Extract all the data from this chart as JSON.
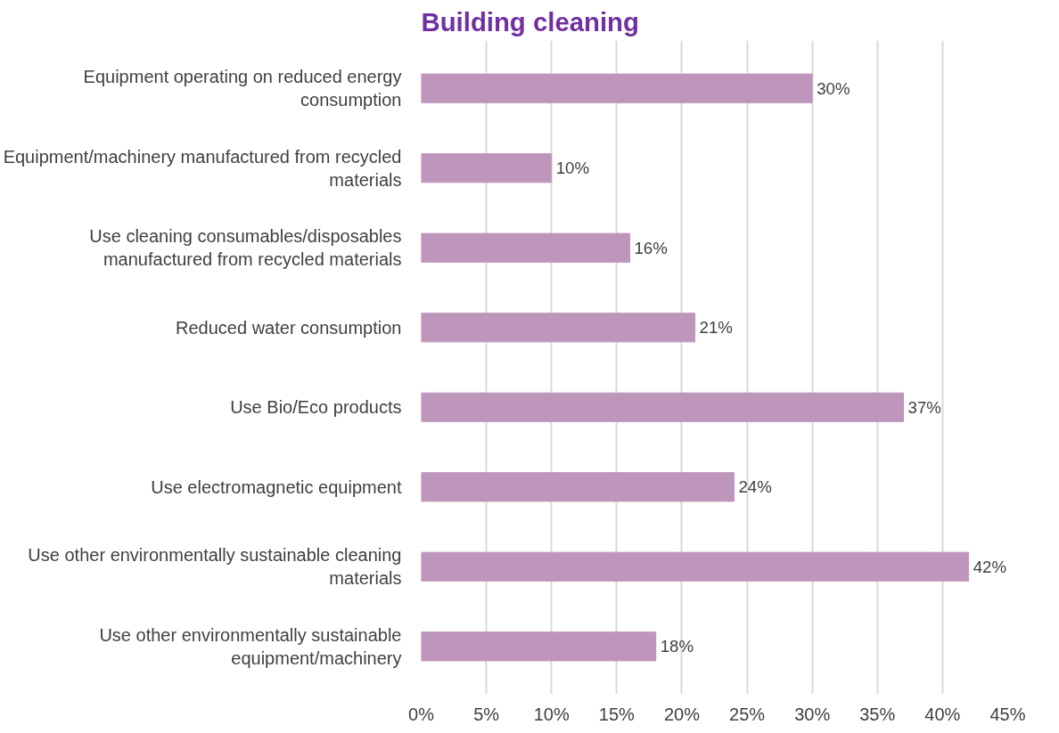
{
  "chart_data": {
    "type": "bar",
    "orientation": "horizontal",
    "title": "Building cleaning",
    "categories": [
      "Equipment operating on reduced energy consumption",
      "Equipment/machinery manufactured from recycled materials",
      "Use cleaning consumables/disposables manufactured from recycled materials",
      "Reduced water consumption",
      "Use Bio/Eco products",
      "Use electromagnetic equipment",
      "Use other environmentally sustainable cleaning materials",
      "Use other environmentally sustainable equipment/machinery"
    ],
    "values": [
      30,
      10,
      16,
      21,
      37,
      24,
      42,
      18
    ],
    "value_labels": [
      "30%",
      "10%",
      "16%",
      "21%",
      "37%",
      "24%",
      "42%",
      "18%"
    ],
    "color": "#bf96bb",
    "xlim": [
      0,
      45
    ],
    "xticks": [
      {
        "value": 0,
        "label": "0%"
      },
      {
        "value": 5,
        "label": "5%"
      },
      {
        "value": 10,
        "label": "10%"
      },
      {
        "value": 15,
        "label": "15%"
      },
      {
        "value": 20,
        "label": "20%"
      },
      {
        "value": 25,
        "label": "25%"
      },
      {
        "value": 30,
        "label": "30%"
      },
      {
        "value": 35,
        "label": "35%"
      },
      {
        "value": 40,
        "label": "40%"
      },
      {
        "value": 45,
        "label": "45%"
      }
    ],
    "grid": "x"
  }
}
